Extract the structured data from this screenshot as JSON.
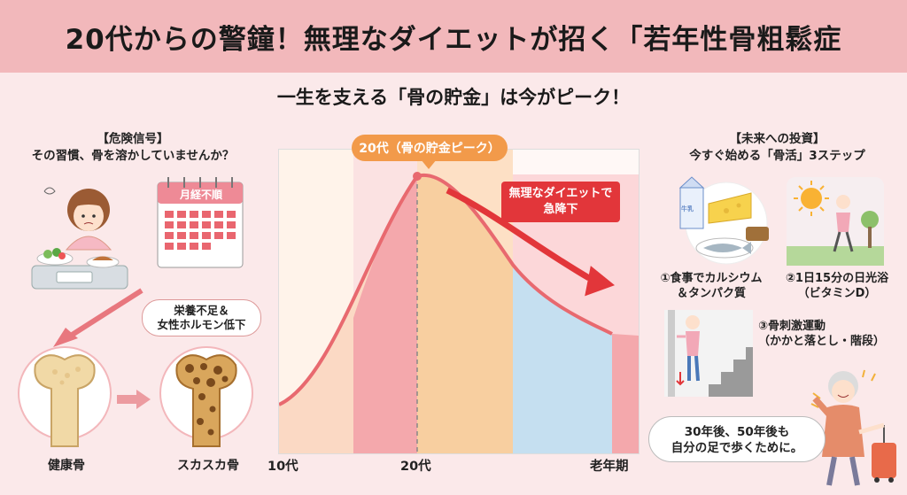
{
  "header": {
    "title": "20代からの警鐘！無理なダイエットが招く「若年性骨粗鬆症",
    "subtitle": "一生を支える「骨の貯金」は今がピーク！"
  },
  "left": {
    "heading": "【危険信号】",
    "question": "その習慣、骨を溶かしていませんか？",
    "calendar_label": "月経不順",
    "bubble_line1": "栄養不足＆",
    "bubble_line2": "女性ホルモン低下",
    "healthy_bone_label": "健康骨",
    "porous_bone_label": "スカスカ骨"
  },
  "chart": {
    "peak_label": "20代（骨の貯金ピーク）",
    "diet_line1": "無理なダイエットで",
    "diet_line2": "急降下",
    "x_ticks": [
      "10代",
      "20代",
      "老年期"
    ],
    "colors": {
      "pink": "#f4a8ac",
      "orange": "#f8cfa0",
      "blue": "#c5dff0",
      "curve": "#e8696f",
      "arrow": "#e2363a"
    }
  },
  "chart_data": {
    "type": "area",
    "x": [
      "10代",
      "20代",
      "老年期"
    ],
    "series": [],
    "annotations": [
      "20代（骨の貯金ピーク）",
      "無理なダイエットで急降下"
    ]
  },
  "right": {
    "heading": "【未来への投資】",
    "intro": "今すぐ始める「骨活」3ステップ",
    "step1_line1": "①食事でカルシウム",
    "step1_line2": "＆タンパク質",
    "step2_line1": "②1日15分の日光浴",
    "step2_line2": "（ビタミンD）",
    "step3_line1": "③骨刺激運動",
    "step3_line2": "（かかと落とし・階段）",
    "closing_line1": "30年後、50年後も",
    "closing_line2": "自分の足で歩くために。",
    "milk_label": "牛乳"
  }
}
